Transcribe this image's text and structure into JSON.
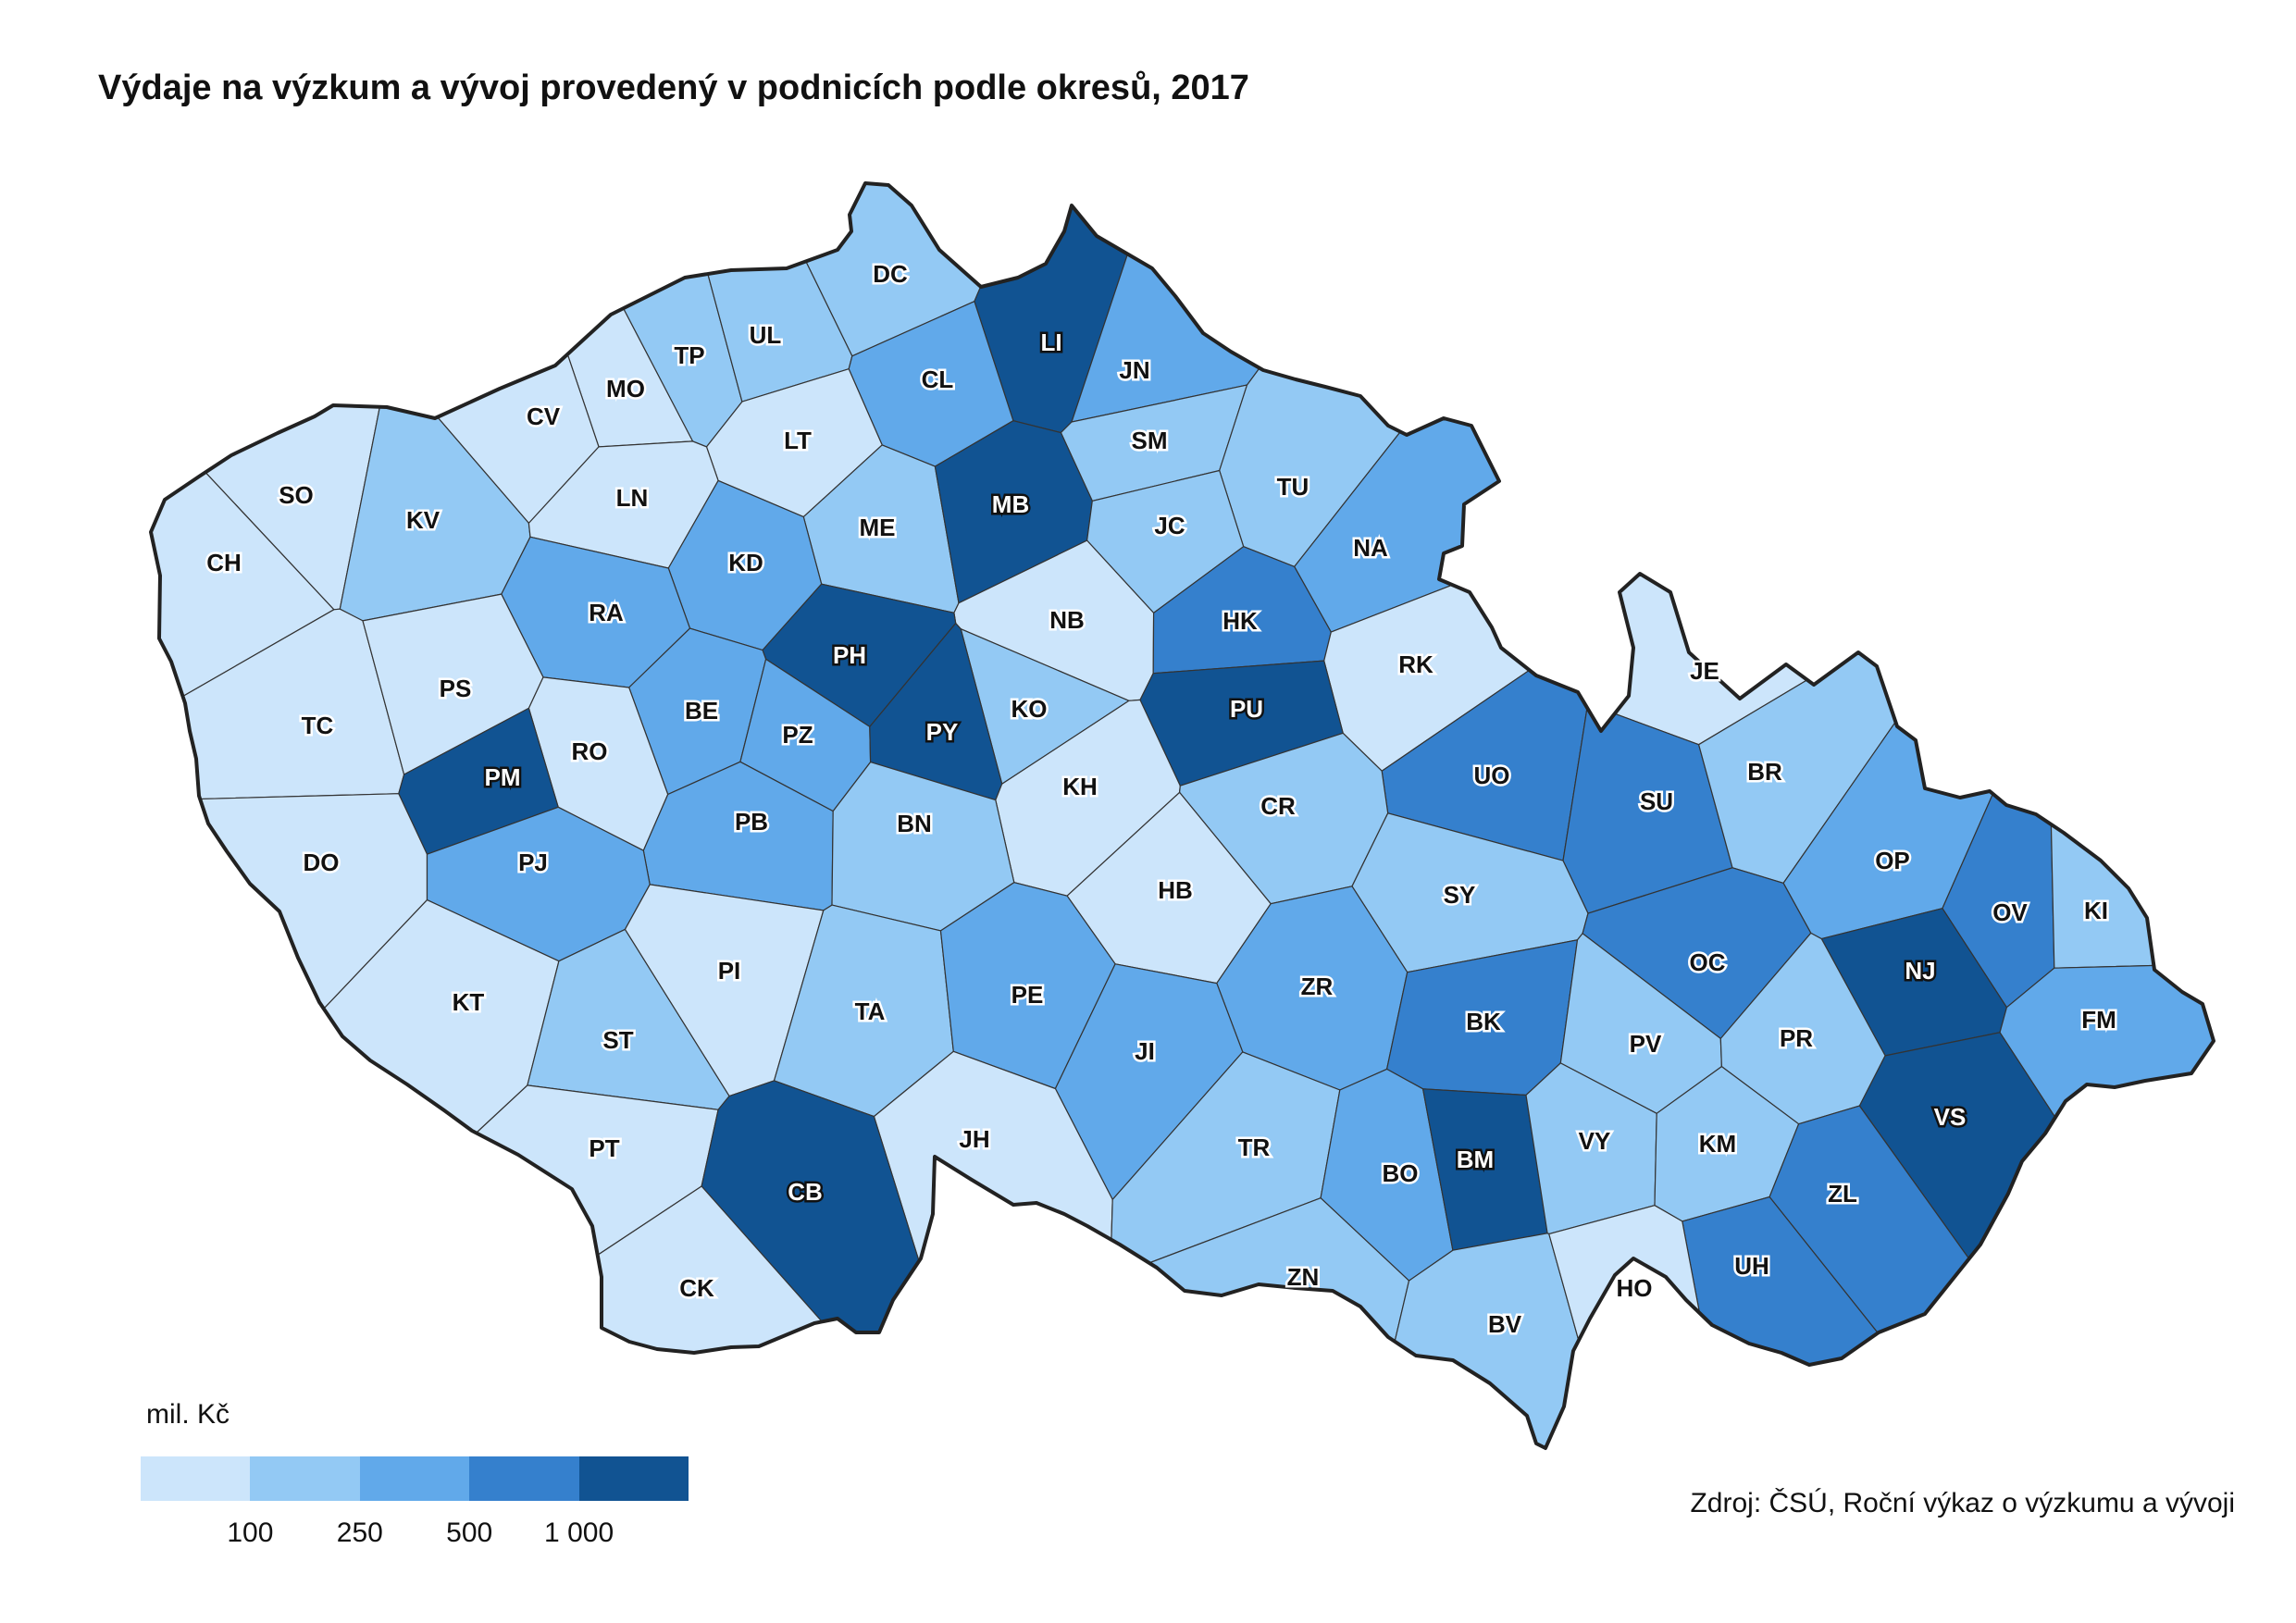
{
  "title": "Výdaje na výzkum a vývoj provedený v podnicích podle okresů, 2017",
  "legend": {
    "unit": "mil. Kč",
    "ticks": [
      "100",
      "250",
      "500",
      "1 000"
    ],
    "colors": [
      "#cce5fb",
      "#93c9f4",
      "#61a9ea",
      "#3580cd",
      "#115392"
    ]
  },
  "source": "Zdroj: ČSÚ, Roční výkaz o výzkumu a vývoji",
  "country_border_color": "#222222",
  "districts": [
    {
      "code": "DC",
      "cls": 1
    },
    {
      "code": "LI",
      "cls": 4
    },
    {
      "code": "TP",
      "cls": 1
    },
    {
      "code": "UL",
      "cls": 1
    },
    {
      "code": "CL",
      "cls": 2
    },
    {
      "code": "JN",
      "cls": 2
    },
    {
      "code": "MO",
      "cls": 0
    },
    {
      "code": "CV",
      "cls": 0
    },
    {
      "code": "LT",
      "cls": 0
    },
    {
      "code": "SM",
      "cls": 1
    },
    {
      "code": "SO",
      "cls": 0
    },
    {
      "code": "KV",
      "cls": 1
    },
    {
      "code": "CH",
      "cls": 0
    },
    {
      "code": "LN",
      "cls": 0
    },
    {
      "code": "ME",
      "cls": 1
    },
    {
      "code": "MB",
      "cls": 4
    },
    {
      "code": "TU",
      "cls": 1
    },
    {
      "code": "JC",
      "cls": 1
    },
    {
      "code": "NA",
      "cls": 2
    },
    {
      "code": "KD",
      "cls": 2
    },
    {
      "code": "RA",
      "cls": 2
    },
    {
      "code": "NB",
      "cls": 0
    },
    {
      "code": "HK",
      "cls": 3
    },
    {
      "code": "PH",
      "cls": 4
    },
    {
      "code": "RK",
      "cls": 0
    },
    {
      "code": "JE",
      "cls": 0
    },
    {
      "code": "TC",
      "cls": 0
    },
    {
      "code": "PS",
      "cls": 0
    },
    {
      "code": "BE",
      "cls": 2
    },
    {
      "code": "KO",
      "cls": 1
    },
    {
      "code": "PU",
      "cls": 4
    },
    {
      "code": "PZ",
      "cls": 2
    },
    {
      "code": "PY",
      "cls": 4
    },
    {
      "code": "RO",
      "cls": 0
    },
    {
      "code": "PM",
      "cls": 4
    },
    {
      "code": "UO",
      "cls": 3
    },
    {
      "code": "SU",
      "cls": 3
    },
    {
      "code": "BR",
      "cls": 1
    },
    {
      "code": "KH",
      "cls": 0
    },
    {
      "code": "PB",
      "cls": 2
    },
    {
      "code": "BN",
      "cls": 1
    },
    {
      "code": "CR",
      "cls": 1
    },
    {
      "code": "DO",
      "cls": 0
    },
    {
      "code": "PJ",
      "cls": 2
    },
    {
      "code": "HB",
      "cls": 0
    },
    {
      "code": "SY",
      "cls": 1
    },
    {
      "code": "OP",
      "cls": 2
    },
    {
      "code": "OV",
      "cls": 3
    },
    {
      "code": "KI",
      "cls": 1
    },
    {
      "code": "OC",
      "cls": 3
    },
    {
      "code": "NJ",
      "cls": 4
    },
    {
      "code": "PI",
      "cls": 0
    },
    {
      "code": "ZR",
      "cls": 2
    },
    {
      "code": "TA",
      "cls": 1
    },
    {
      "code": "PE",
      "cls": 2
    },
    {
      "code": "KT",
      "cls": 0
    },
    {
      "code": "BK",
      "cls": 3
    },
    {
      "code": "FM",
      "cls": 2
    },
    {
      "code": "ST",
      "cls": 1
    },
    {
      "code": "JI",
      "cls": 2
    },
    {
      "code": "PV",
      "cls": 1
    },
    {
      "code": "PR",
      "cls": 1
    },
    {
      "code": "VS",
      "cls": 4
    },
    {
      "code": "JH",
      "cls": 0
    },
    {
      "code": "PT",
      "cls": 0
    },
    {
      "code": "CB",
      "cls": 4
    },
    {
      "code": "TR",
      "cls": 1
    },
    {
      "code": "BO",
      "cls": 2
    },
    {
      "code": "BM",
      "cls": 4
    },
    {
      "code": "VY",
      "cls": 1
    },
    {
      "code": "KM",
      "cls": 1
    },
    {
      "code": "ZL",
      "cls": 3
    },
    {
      "code": "UH",
      "cls": 3
    },
    {
      "code": "ZN",
      "cls": 1
    },
    {
      "code": "CK",
      "cls": 0
    },
    {
      "code": "BV",
      "cls": 1
    },
    {
      "code": "HO",
      "cls": 0
    }
  ]
}
